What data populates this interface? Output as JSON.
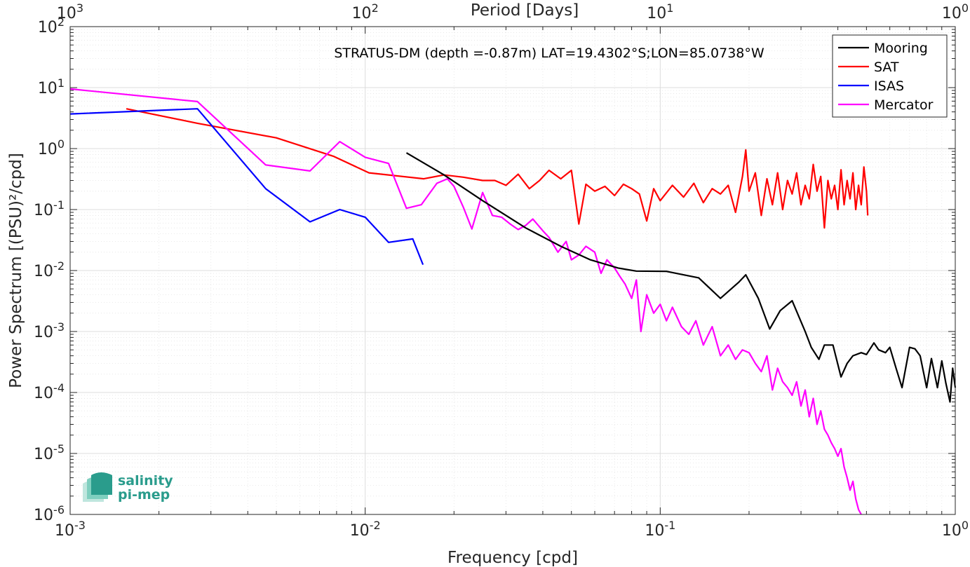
{
  "chart_data": {
    "type": "line",
    "title": "",
    "annotation": "STRATUS-DM (depth =-0.87m) LAT=19.4302°S;LON=85.0738°W",
    "xlabel": "Frequency [cpd]",
    "ylabel": "Power Spectrum [(PSU)²/cpd]",
    "xlabel_top": "Period [Days]",
    "xscale": "log",
    "yscale": "log",
    "xlim": [
      0.001,
      1
    ],
    "ylim": [
      1e-06,
      100
    ],
    "grid": true,
    "legend_position": "top-right",
    "x_ticks": [
      {
        "value": 0.001,
        "base": "10",
        "exp": "-3"
      },
      {
        "value": 0.01,
        "base": "10",
        "exp": "-2"
      },
      {
        "value": 0.1,
        "base": "10",
        "exp": "-1"
      },
      {
        "value": 1,
        "base": "10",
        "exp": "0"
      }
    ],
    "x_ticks_top": [
      {
        "value": 0.001,
        "base": "10",
        "exp": "3"
      },
      {
        "value": 0.01,
        "base": "10",
        "exp": "2"
      },
      {
        "value": 0.1,
        "base": "10",
        "exp": "1"
      },
      {
        "value": 1,
        "base": "10",
        "exp": "0"
      }
    ],
    "y_ticks": [
      {
        "value": 1e-06,
        "base": "10",
        "exp": "-6"
      },
      {
        "value": 1e-05,
        "base": "10",
        "exp": "-5"
      },
      {
        "value": 0.0001,
        "base": "10",
        "exp": "-4"
      },
      {
        "value": 0.001,
        "base": "10",
        "exp": "-3"
      },
      {
        "value": 0.01,
        "base": "10",
        "exp": "-2"
      },
      {
        "value": 0.1,
        "base": "10",
        "exp": "-1"
      },
      {
        "value": 1,
        "base": "10",
        "exp": "0"
      },
      {
        "value": 10,
        "base": "10",
        "exp": "1"
      },
      {
        "value": 100,
        "base": "10",
        "exp": "2"
      }
    ],
    "series": [
      {
        "name": "Mooring",
        "color": "#000000",
        "x": [
          0.0138,
          0.0185,
          0.025,
          0.035,
          0.046,
          0.058,
          0.072,
          0.083,
          0.105,
          0.135,
          0.16,
          0.185,
          0.195,
          0.215,
          0.235,
          0.255,
          0.28,
          0.31,
          0.325,
          0.345,
          0.36,
          0.385,
          0.41,
          0.43,
          0.45,
          0.48,
          0.5,
          0.53,
          0.55,
          0.58,
          0.6,
          0.63,
          0.66,
          0.7,
          0.73,
          0.76,
          0.8,
          0.83,
          0.87,
          0.9,
          0.93,
          0.96,
          0.98,
          1.0
        ],
        "y": [
          0.85,
          0.37,
          0.14,
          0.05,
          0.025,
          0.015,
          0.011,
          0.0098,
          0.0097,
          0.0076,
          0.0035,
          0.0065,
          0.0085,
          0.0035,
          0.0011,
          0.0022,
          0.0032,
          0.001,
          0.00055,
          0.00035,
          0.0006,
          0.0006,
          0.00018,
          0.0003,
          0.0004,
          0.00045,
          0.00042,
          0.00065,
          0.0005,
          0.00045,
          0.00055,
          0.00025,
          0.00012,
          0.00055,
          0.00052,
          0.0004,
          0.00012,
          0.00036,
          0.00012,
          0.00033,
          0.00014,
          7e-05,
          0.00025,
          0.00012
        ]
      },
      {
        "name": "SAT",
        "color": "#ff0000",
        "x": [
          0.00155,
          0.0027,
          0.005,
          0.0078,
          0.0103,
          0.0158,
          0.0185,
          0.0215,
          0.025,
          0.0275,
          0.03,
          0.033,
          0.036,
          0.039,
          0.042,
          0.046,
          0.05,
          0.053,
          0.056,
          0.06,
          0.065,
          0.07,
          0.075,
          0.08,
          0.085,
          0.09,
          0.095,
          0.1,
          0.11,
          0.12,
          0.13,
          0.14,
          0.15,
          0.16,
          0.17,
          0.18,
          0.19,
          0.195,
          0.2,
          0.21,
          0.22,
          0.23,
          0.24,
          0.25,
          0.26,
          0.27,
          0.28,
          0.29,
          0.3,
          0.31,
          0.32,
          0.33,
          0.34,
          0.35,
          0.36,
          0.37,
          0.38,
          0.39,
          0.4,
          0.41,
          0.42,
          0.43,
          0.44,
          0.45,
          0.46,
          0.47,
          0.48,
          0.49,
          0.5,
          0.505
        ],
        "y": [
          4.5,
          2.6,
          1.5,
          0.75,
          0.4,
          0.32,
          0.37,
          0.34,
          0.3,
          0.3,
          0.25,
          0.38,
          0.22,
          0.3,
          0.44,
          0.32,
          0.44,
          0.058,
          0.26,
          0.2,
          0.24,
          0.17,
          0.26,
          0.22,
          0.18,
          0.065,
          0.22,
          0.14,
          0.25,
          0.16,
          0.27,
          0.13,
          0.22,
          0.18,
          0.25,
          0.09,
          0.35,
          0.95,
          0.2,
          0.4,
          0.08,
          0.32,
          0.12,
          0.4,
          0.1,
          0.3,
          0.18,
          0.4,
          0.12,
          0.25,
          0.15,
          0.55,
          0.2,
          0.35,
          0.05,
          0.3,
          0.15,
          0.25,
          0.1,
          0.45,
          0.12,
          0.3,
          0.15,
          0.4,
          0.1,
          0.25,
          0.12,
          0.5,
          0.2,
          0.08
        ]
      },
      {
        "name": "ISAS",
        "color": "#0000ff",
        "x": [
          0.001,
          0.0027,
          0.0046,
          0.0065,
          0.0082,
          0.01,
          0.012,
          0.0145,
          0.0157
        ],
        "y": [
          3.7,
          4.5,
          0.22,
          0.063,
          0.1,
          0.075,
          0.029,
          0.033,
          0.0125
        ]
      },
      {
        "name": "Mercator",
        "color": "#ff00ff",
        "x": [
          0.001,
          0.0027,
          0.0046,
          0.0065,
          0.0082,
          0.01,
          0.012,
          0.0138,
          0.0155,
          0.0175,
          0.019,
          0.02,
          0.0215,
          0.023,
          0.025,
          0.027,
          0.029,
          0.031,
          0.033,
          0.035,
          0.037,
          0.04,
          0.042,
          0.045,
          0.048,
          0.05,
          0.053,
          0.056,
          0.06,
          0.063,
          0.066,
          0.07,
          0.073,
          0.076,
          0.08,
          0.083,
          0.086,
          0.09,
          0.095,
          0.1,
          0.105,
          0.11,
          0.118,
          0.125,
          0.132,
          0.14,
          0.15,
          0.16,
          0.17,
          0.18,
          0.19,
          0.2,
          0.21,
          0.22,
          0.23,
          0.24,
          0.25,
          0.26,
          0.27,
          0.28,
          0.29,
          0.3,
          0.31,
          0.32,
          0.33,
          0.34,
          0.35,
          0.36,
          0.37,
          0.38,
          0.39,
          0.4,
          0.41,
          0.42,
          0.43,
          0.44,
          0.45,
          0.46,
          0.47,
          0.48
        ],
        "y": [
          9.5,
          5.9,
          0.54,
          0.43,
          1.3,
          0.72,
          0.57,
          0.105,
          0.12,
          0.27,
          0.32,
          0.24,
          0.11,
          0.048,
          0.19,
          0.08,
          0.075,
          0.058,
          0.047,
          0.055,
          0.07,
          0.045,
          0.035,
          0.02,
          0.03,
          0.015,
          0.018,
          0.025,
          0.02,
          0.009,
          0.015,
          0.011,
          0.008,
          0.006,
          0.0035,
          0.007,
          0.001,
          0.004,
          0.002,
          0.0028,
          0.0015,
          0.0025,
          0.0012,
          0.0009,
          0.0015,
          0.0006,
          0.0012,
          0.0004,
          0.0006,
          0.00035,
          0.0005,
          0.00045,
          0.0003,
          0.00022,
          0.0004,
          0.00011,
          0.00025,
          0.00015,
          0.00012,
          9e-05,
          0.00015,
          6e-05,
          0.00011,
          4e-05,
          8e-05,
          3e-05,
          5e-05,
          2.5e-05,
          2e-05,
          1.5e-05,
          1.2e-05,
          9e-06,
          1.2e-05,
          6e-06,
          4e-06,
          2.5e-06,
          3.5e-06,
          1.8e-06,
          1.2e-06,
          1e-06
        ]
      }
    ]
  },
  "logo": {
    "line1": "salinity",
    "line2": "pi-mep"
  }
}
